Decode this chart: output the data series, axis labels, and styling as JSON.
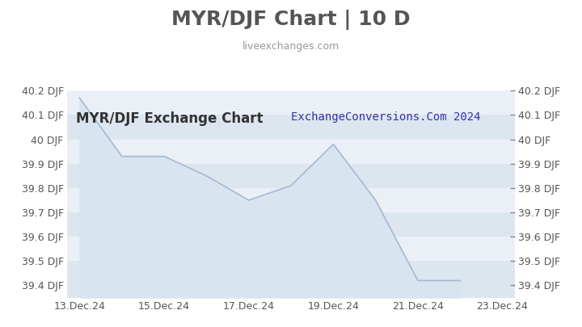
{
  "title": "MYR/DJF Chart | 10 D",
  "subtitle": "liveexchanges.com",
  "watermark": "ExchangeConversions.Com 2024",
  "chart_label": "MYR/DJF Exchange Chart",
  "x_labels": [
    "13.Dec.24",
    "15.Dec.24",
    "17.Dec.24",
    "19.Dec.24",
    "21.Dec.24",
    "23.Dec.24"
  ],
  "x_tick_positions": [
    0,
    2,
    4,
    6,
    8,
    10
  ],
  "y_values": [
    40.17,
    39.93,
    39.93,
    39.85,
    39.75,
    39.81,
    39.98,
    39.75,
    39.42,
    39.42
  ],
  "x_data": [
    0,
    1,
    2,
    3,
    4,
    5,
    6,
    7,
    8,
    9
  ],
  "xlim": [
    -0.3,
    10.3
  ],
  "ylim": [
    39.35,
    40.25
  ],
  "yticks": [
    39.4,
    39.5,
    39.6,
    39.7,
    39.8,
    39.9,
    40.0,
    40.1,
    40.2
  ],
  "ytick_labels_left": [
    "39.4 DJF",
    "39.5 DJF",
    "39.6 DJF",
    "39.7 DJF",
    "39.8 DJF",
    "39.9 DJF",
    "40 DJF",
    "40.1 DJF",
    "40.2 DJF"
  ],
  "ytick_labels_right": [
    "39.4 DJF",
    "39.5 DJF",
    "39.6 DJF",
    "39.7 DJF",
    "39.8 DJF",
    "39.9 DJF",
    "40 DJF",
    "40.1 DJF",
    "40.2 DJF"
  ],
  "line_color": "#a8b8d0",
  "fill_color": "#d8e4f0",
  "bg_color": "#ffffff",
  "plot_bg_color_dark": "#dde6ef",
  "plot_bg_color_light": "#eaf0f6",
  "title_color": "#555555",
  "subtitle_color": "#999999",
  "watermark_color": "#3333aa",
  "label_color": "#333333",
  "grid_color": "#ffffff",
  "title_fontsize": 18,
  "subtitle_fontsize": 9,
  "watermark_fontsize": 10,
  "label_fontsize": 12,
  "tick_fontsize": 9
}
